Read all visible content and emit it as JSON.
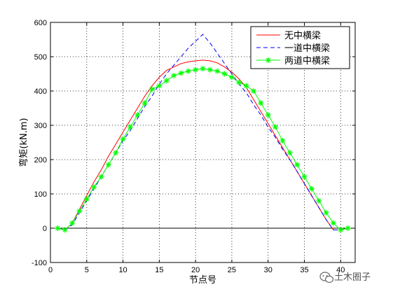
{
  "chart_data": {
    "type": "line",
    "title": "",
    "xlabel": "节点号",
    "ylabel": "弯矩(kN.m)",
    "xlim": [
      0,
      42
    ],
    "ylim": [
      -100,
      600
    ],
    "xticks": [
      0,
      5,
      10,
      15,
      20,
      25,
      30,
      35,
      40
    ],
    "yticks": [
      -100,
      0,
      100,
      200,
      300,
      400,
      500,
      600
    ],
    "grid": true,
    "legend_position": "top-right",
    "reference_line": {
      "y": 0,
      "color": "#000000"
    },
    "series": [
      {
        "name": "无中横梁",
        "style": "solid",
        "color": "#ff0000",
        "x": [
          1,
          2,
          3,
          4,
          5,
          6,
          7,
          8,
          9,
          10,
          11,
          12,
          13,
          14,
          15,
          16,
          17,
          18,
          19,
          20,
          21,
          22,
          23,
          24,
          25,
          26,
          27,
          28,
          29,
          30,
          31,
          32,
          33,
          34,
          35,
          36,
          37,
          38,
          39,
          40,
          41
        ],
        "y": [
          0,
          -5,
          15,
          55,
          95,
          135,
          170,
          210,
          245,
          280,
          315,
          350,
          385,
          415,
          440,
          460,
          470,
          480,
          485,
          488,
          490,
          488,
          482,
          470,
          455,
          435,
          410,
          375,
          340,
          305,
          270,
          235,
          200,
          165,
          130,
          95,
          60,
          25,
          -5,
          -5,
          0
        ]
      },
      {
        "name": "一道中横梁",
        "style": "dashed",
        "color": "#0000ff",
        "x": [
          1,
          2,
          3,
          4,
          5,
          6,
          7,
          8,
          9,
          10,
          11,
          12,
          13,
          14,
          15,
          16,
          17,
          18,
          19,
          20,
          21,
          22,
          23,
          24,
          25,
          26,
          27,
          28,
          29,
          30,
          31,
          32,
          33,
          34,
          35,
          36,
          37,
          38,
          39,
          40,
          41
        ],
        "y": [
          0,
          -5,
          10,
          45,
          80,
          115,
          150,
          185,
          220,
          255,
          285,
          320,
          355,
          385,
          420,
          450,
          475,
          500,
          525,
          545,
          565,
          540,
          510,
          480,
          450,
          420,
          395,
          360,
          330,
          295,
          265,
          230,
          200,
          165,
          130,
          95,
          60,
          25,
          -5,
          -5,
          0
        ]
      },
      {
        "name": "两道中横梁",
        "style": "solid-star",
        "color": "#00ff00",
        "x": [
          1,
          2,
          3,
          4,
          5,
          6,
          7,
          8,
          9,
          10,
          11,
          12,
          13,
          14,
          15,
          16,
          17,
          18,
          19,
          20,
          21,
          22,
          23,
          24,
          25,
          26,
          27,
          28,
          29,
          30,
          31,
          32,
          33,
          34,
          35,
          36,
          37,
          38,
          39,
          40,
          41
        ],
        "y": [
          0,
          -5,
          15,
          50,
          85,
          120,
          150,
          185,
          220,
          260,
          295,
          330,
          365,
          405,
          415,
          430,
          445,
          452,
          458,
          462,
          465,
          462,
          458,
          450,
          440,
          425,
          415,
          400,
          365,
          330,
          295,
          255,
          220,
          185,
          150,
          115,
          80,
          45,
          15,
          -5,
          0
        ]
      }
    ]
  },
  "watermark": {
    "text": "土木圈子",
    "icon": "wechat-icon"
  }
}
